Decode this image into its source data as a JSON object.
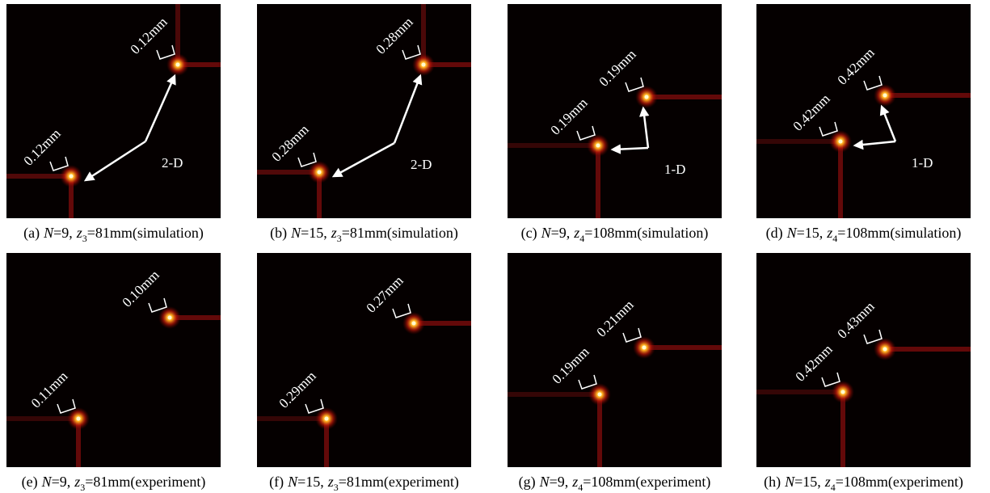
{
  "panels": [
    {
      "tag": "(a)",
      "n_symbol": "N",
      "n_value": "=9,",
      "z_symbol": "z",
      "z_sub": "3",
      "z_value": "=81mm(simulation)",
      "marks": [
        "0.12mm",
        "0.12mm"
      ],
      "arrow_label": "2-D"
    },
    {
      "tag": "(b)",
      "n_symbol": "N",
      "n_value": "=15,",
      "z_symbol": "z",
      "z_sub": "3",
      "z_value": "=81mm(simulation)",
      "marks": [
        "0.28mm",
        "0.28mm"
      ],
      "arrow_label": "2-D"
    },
    {
      "tag": "(c)",
      "n_symbol": "N",
      "n_value": "=9,",
      "z_symbol": "z",
      "z_sub": "4",
      "z_value": "=108mm(simulation)",
      "marks": [
        "0.19mm",
        "0.19mm"
      ],
      "arrow_label": "1-D"
    },
    {
      "tag": "(d)",
      "n_symbol": "N",
      "n_value": "=15,",
      "z_symbol": "z",
      "z_sub": "4",
      "z_value": "=108mm(simulation)",
      "marks": [
        "0.42mm",
        "0.42mm"
      ],
      "arrow_label": "1-D"
    },
    {
      "tag": "(e)",
      "n_symbol": "N",
      "n_value": "=9,",
      "z_symbol": "z",
      "z_sub": "3",
      "z_value": "=81mm(experiment)",
      "marks": [
        "0.10mm",
        "0.11mm"
      ]
    },
    {
      "tag": "(f)",
      "n_symbol": "N",
      "n_value": "=15,",
      "z_symbol": "z",
      "z_sub": "3",
      "z_value": "=81mm(experiment)",
      "marks": [
        "0.27mm",
        "0.29mm"
      ]
    },
    {
      "tag": "(g)",
      "n_symbol": "N",
      "n_value": "=9,",
      "z_symbol": "z",
      "z_sub": "4",
      "z_value": "=108mm(experiment)",
      "marks": [
        "0.21mm",
        "0.19mm"
      ]
    },
    {
      "tag": "(h)",
      "n_symbol": "N",
      "n_value": "=15,",
      "z_symbol": "z",
      "z_sub": "4",
      "z_value": "=108mm(experiment)",
      "marks": [
        "0.43mm",
        "0.42mm"
      ]
    }
  ]
}
